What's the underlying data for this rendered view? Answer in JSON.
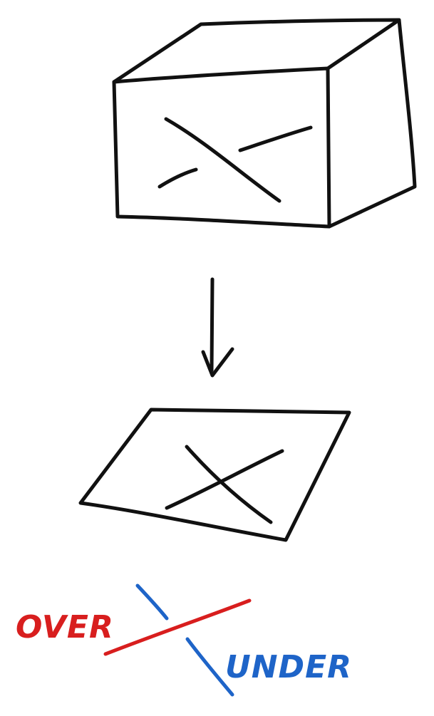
{
  "labels": {
    "over": "OVER",
    "under": "UNDER"
  },
  "colors": {
    "ink": "#111111",
    "over": "#d81e1e",
    "under": "#1e64c8"
  }
}
